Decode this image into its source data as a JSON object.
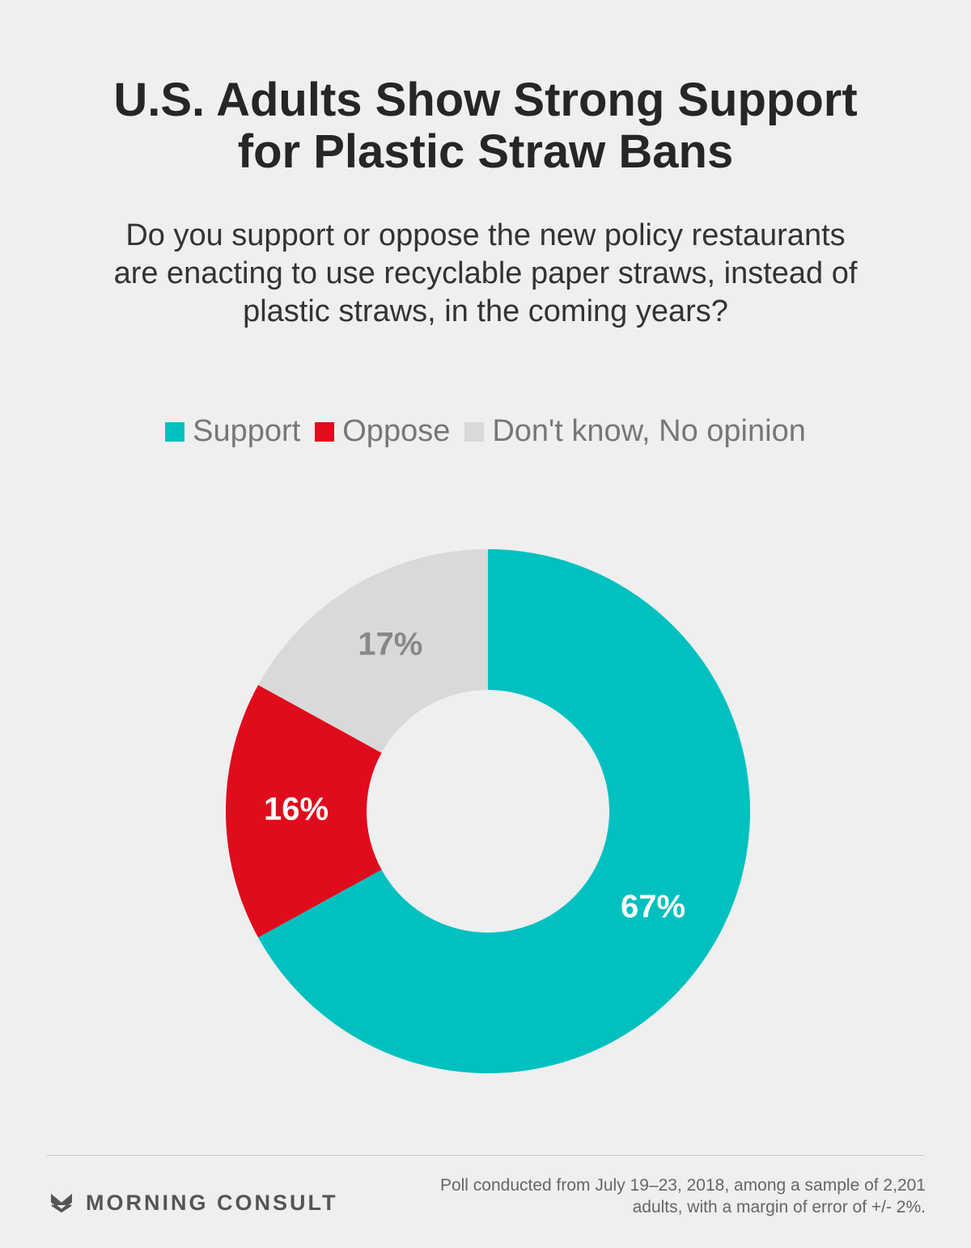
{
  "chart_data": {
    "type": "donut",
    "title": "U.S. Adults Show Strong Support for Plastic Straw Bans",
    "subtitle": "Do you support or oppose the new policy restaurants are enacting to use recyclable paper straws, instead of plastic straws, in the coming years?",
    "categories": [
      "Support",
      "Oppose",
      "Don't know, No opinion"
    ],
    "values": [
      67,
      16,
      17
    ],
    "value_labels": [
      "67%",
      "16%",
      "17%"
    ],
    "colors": [
      "#00c0c0",
      "#e00b1c",
      "#d9d9d9"
    ],
    "label_colors": [
      "#ffffff",
      "#ffffff",
      "#888888"
    ],
    "brand": "MORNING CONSULT",
    "note": "Poll conducted from July 19–23, 2018, among a sample of 2,201 adults, with a margin of error of +/- 2%."
  }
}
